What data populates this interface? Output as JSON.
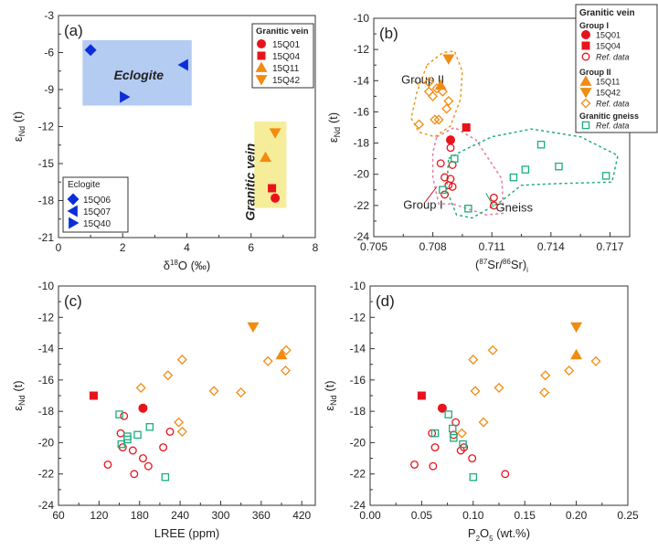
{
  "chart_data": [
    {
      "type": "scatter",
      "panel": "(a)",
      "xlabel": "δ18O (‰)",
      "ylabel": "εNd (t)",
      "xlim": [
        0,
        8
      ],
      "ylim": [
        -21,
        -3
      ],
      "xticks": [
        "0",
        "2",
        "4",
        "6",
        "8"
      ],
      "yticks": [
        "-3",
        "-6",
        "-9",
        "-12",
        "-15",
        "-18",
        "-21"
      ],
      "region_labels": [
        {
          "text": "Eclogite",
          "x": 2.5,
          "y": -8.2,
          "color": "#1f3fbf"
        },
        {
          "text": "Granitic vein",
          "x": 6.1,
          "y": -16.5,
          "color": "#d4141c",
          "rotate": true
        }
      ],
      "shaded": [
        {
          "x0": 0.75,
          "x1": 4.15,
          "y0": -10.3,
          "y1": -5.0,
          "color": "#b4cbf2"
        },
        {
          "x0": 6.1,
          "x1": 7.1,
          "y0": -11.6,
          "y1": -18.6,
          "color": "#f6ed9a"
        }
      ],
      "series": [
        {
          "name": "15Q06",
          "marker": "diamond",
          "color": "#0a2ed9",
          "points": [
            [
              1.0,
              -5.8
            ]
          ]
        },
        {
          "name": "15Q07",
          "marker": "tri-left",
          "color": "#0a2ed9",
          "points": [
            [
              3.9,
              -7.0
            ]
          ]
        },
        {
          "name": "15Q40",
          "marker": "tri-right",
          "color": "#0a2ed9",
          "points": [
            [
              2.05,
              -9.6
            ]
          ]
        },
        {
          "name": "15Q01",
          "marker": "circle",
          "color": "#e8131b",
          "points": [
            [
              6.75,
              -17.8
            ]
          ]
        },
        {
          "name": "15Q04",
          "marker": "square",
          "color": "#e8131b",
          "points": [
            [
              6.65,
              -17.0
            ]
          ]
        },
        {
          "name": "15Q11",
          "marker": "tri-up",
          "color": "#f28b12",
          "points": [
            [
              6.45,
              -14.5
            ]
          ]
        },
        {
          "name": "15Q42",
          "marker": "tri-down",
          "color": "#f28b12",
          "points": [
            [
              6.75,
              -12.5
            ]
          ]
        }
      ],
      "legend_left": {
        "title": "Eclogite",
        "items": [
          "15Q06",
          "15Q07",
          "15Q40"
        ]
      },
      "legend_right": {
        "title": "Granitic vein",
        "items": [
          "15Q01",
          "15Q04",
          "15Q11",
          "15Q42"
        ]
      }
    },
    {
      "type": "scatter",
      "panel": "(b)",
      "xlabel": "(87Sr/86Sr)i",
      "ylabel": "εNd (t)",
      "xlim": [
        0.705,
        0.718
      ],
      "ylim": [
        -24,
        -10
      ],
      "xticks": [
        "0.705",
        "0.708",
        "0.711",
        "0.714",
        "0.717"
      ],
      "yticks": [
        "-10",
        "-12",
        "-14",
        "-16",
        "-18",
        "-20",
        "-22",
        "-24"
      ],
      "group_labels": [
        {
          "text": "Group II",
          "x": 0.7064,
          "y": -14.2,
          "color": "#e89a1c"
        },
        {
          "text": "Group I",
          "x": 0.7065,
          "y": -22.2,
          "color": "#d4141c"
        },
        {
          "text": "Gneiss",
          "x": 0.7112,
          "y": -22.4,
          "color": "#16a06a"
        }
      ],
      "series": [
        {
          "name": "15Q01",
          "marker": "circle",
          "color": "#e8131b",
          "points": [
            [
              0.7089,
              -17.8
            ]
          ]
        },
        {
          "name": "15Q04",
          "marker": "square",
          "color": "#e8131b",
          "points": [
            [
              0.7097,
              -17.0
            ]
          ]
        },
        {
          "name": "15Q11",
          "marker": "tri-up",
          "color": "#f28b12",
          "points": [
            [
              0.7084,
              -14.3
            ]
          ]
        },
        {
          "name": "15Q42",
          "marker": "tri-down",
          "color": "#f28b12",
          "points": [
            [
              0.7088,
              -12.6
            ]
          ]
        },
        {
          "name": "Group I Ref. data",
          "marker": "open-circle",
          "color": "#e8131b",
          "points": [
            [
              0.7084,
              -19.3
            ],
            [
              0.7089,
              -18.3
            ],
            [
              0.709,
              -19.4
            ],
            [
              0.7086,
              -20.2
            ],
            [
              0.7089,
              -20.3
            ],
            [
              0.7086,
              -21.3
            ],
            [
              0.7088,
              -20.7
            ],
            [
              0.709,
              -20.8
            ],
            [
              0.7111,
              -21.5
            ],
            [
              0.7111,
              -22.0
            ]
          ]
        },
        {
          "name": "Group II Ref. data",
          "marker": "open-diamond",
          "color": "#f28b12",
          "points": [
            [
              0.7078,
              -14.1
            ],
            [
              0.7082,
              -14.5
            ],
            [
              0.7078,
              -14.7
            ],
            [
              0.7085,
              -14.7
            ],
            [
              0.708,
              -15.0
            ],
            [
              0.7088,
              -15.3
            ],
            [
              0.7087,
              -15.8
            ],
            [
              0.7083,
              -16.5
            ],
            [
              0.7081,
              -16.5
            ],
            [
              0.7073,
              -16.8
            ]
          ]
        },
        {
          "name": "Granitic gneiss Ref. data",
          "marker": "open-square",
          "color": "#1bae7e",
          "points": [
            [
              0.7091,
              -19.0
            ],
            [
              0.7098,
              -22.2
            ],
            [
              0.7121,
              -20.2
            ],
            [
              0.7135,
              -18.1
            ],
            [
              0.7127,
              -19.7
            ],
            [
              0.7144,
              -19.5
            ],
            [
              0.7168,
              -20.1
            ],
            [
              0.7085,
              -21.0
            ]
          ]
        }
      ],
      "legend": {
        "title": "Granitic vein",
        "group1": "Group I",
        "group2": "Group II",
        "group3": "Granitic gneiss",
        "items": [
          "15Q01",
          "15Q04",
          "Ref. data",
          "15Q11",
          "15Q42",
          "Ref. data",
          "Ref. data"
        ]
      }
    },
    {
      "type": "scatter",
      "panel": "(c)",
      "xlabel": "LREE (ppm)",
      "ylabel": "εNd (t)",
      "xlim": [
        60,
        440
      ],
      "ylim": [
        -24,
        -10
      ],
      "xticks": [
        "60",
        "120",
        "180",
        "240",
        "300",
        "360",
        "420"
      ],
      "yticks": [
        "-10",
        "-12",
        "-14",
        "-16",
        "-18",
        "-20",
        "-22",
        "-24"
      ],
      "series": [
        {
          "name": "15Q01",
          "marker": "circle",
          "color": "#e8131b",
          "points": [
            [
              185,
              -17.8
            ]
          ]
        },
        {
          "name": "15Q04",
          "marker": "square",
          "color": "#e8131b",
          "points": [
            [
              112,
              -17.0
            ]
          ]
        },
        {
          "name": "15Q11",
          "marker": "tri-up",
          "color": "#f28b12",
          "points": [
            [
              390,
              -14.4
            ]
          ]
        },
        {
          "name": "15Q42",
          "marker": "tri-down",
          "color": "#f28b12",
          "points": [
            [
              348,
              -12.6
            ]
          ]
        },
        {
          "name": "Group I Ref. data",
          "marker": "open-circle",
          "color": "#e8131b",
          "points": [
            [
              133,
              -21.4
            ],
            [
              157,
              -18.3
            ],
            [
              152,
              -19.4
            ],
            [
              155,
              -20.3
            ],
            [
              170,
              -20.5
            ],
            [
              172,
              -22.0
            ],
            [
              185,
              -21.0
            ],
            [
              193,
              -21.5
            ],
            [
              215,
              -20.3
            ],
            [
              225,
              -19.3
            ]
          ]
        },
        {
          "name": "Group II Ref. data",
          "marker": "open-diamond",
          "color": "#f28b12",
          "points": [
            [
              182,
              -16.5
            ],
            [
              222,
              -15.7
            ],
            [
              243,
              -14.7
            ],
            [
              238,
              -18.7
            ],
            [
              243,
              -19.3
            ],
            [
              290,
              -16.7
            ],
            [
              330,
              -16.8
            ],
            [
              370,
              -14.8
            ],
            [
              397,
              -14.1
            ],
            [
              396,
              -15.4
            ]
          ]
        },
        {
          "name": "Granitic gneiss Ref. data",
          "marker": "open-square",
          "color": "#1bae7e",
          "points": [
            [
              150,
              -18.2
            ],
            [
              153,
              -20.1
            ],
            [
              162,
              -19.8
            ],
            [
              177,
              -19.5
            ],
            [
              195,
              -19.0
            ],
            [
              218,
              -22.2
            ],
            [
              162,
              -19.6
            ]
          ]
        }
      ]
    },
    {
      "type": "scatter",
      "panel": "(d)",
      "xlabel": "P2O5 (wt.%)",
      "ylabel": "εNd (t)",
      "xlim": [
        0.0,
        0.25
      ],
      "ylim": [
        -24,
        -10
      ],
      "xticks": [
        "0.00",
        "0.05",
        "0.10",
        "0.15",
        "0.20",
        "0.25"
      ],
      "yticks": [
        "-10",
        "-12",
        "-14",
        "-16",
        "-18",
        "-20",
        "-22",
        "-24"
      ],
      "series": [
        {
          "name": "15Q01",
          "marker": "circle",
          "color": "#e8131b",
          "points": [
            [
              0.07,
              -17.8
            ]
          ]
        },
        {
          "name": "15Q04",
          "marker": "square",
          "color": "#e8131b",
          "points": [
            [
              0.05,
              -17.0
            ]
          ]
        },
        {
          "name": "15Q11",
          "marker": "tri-up",
          "color": "#f28b12",
          "points": [
            [
              0.2,
              -14.4
            ]
          ]
        },
        {
          "name": "15Q42",
          "marker": "tri-down",
          "color": "#f28b12",
          "points": [
            [
              0.2,
              -12.6
            ]
          ]
        },
        {
          "name": "Group I Ref. data",
          "marker": "open-circle",
          "color": "#e8131b",
          "points": [
            [
              0.043,
              -21.4
            ],
            [
              0.06,
              -19.4
            ],
            [
              0.063,
              -20.3
            ],
            [
              0.061,
              -21.5
            ],
            [
              0.081,
              -19.5
            ],
            [
              0.083,
              -18.7
            ],
            [
              0.088,
              -20.5
            ],
            [
              0.091,
              -20.3
            ],
            [
              0.099,
              -21.0
            ],
            [
              0.131,
              -22.0
            ]
          ]
        },
        {
          "name": "Group II Ref. data",
          "marker": "open-diamond",
          "color": "#f28b12",
          "points": [
            [
              0.089,
              -19.4
            ],
            [
              0.1,
              -14.7
            ],
            [
              0.102,
              -16.7
            ],
            [
              0.11,
              -18.7
            ],
            [
              0.119,
              -14.1
            ],
            [
              0.125,
              -16.5
            ],
            [
              0.17,
              -15.7
            ],
            [
              0.169,
              -16.8
            ],
            [
              0.193,
              -15.4
            ],
            [
              0.219,
              -14.8
            ]
          ]
        },
        {
          "name": "Granitic gneiss Ref. data",
          "marker": "open-square",
          "color": "#1bae7e",
          "points": [
            [
              0.063,
              -19.4
            ],
            [
              0.076,
              -18.2
            ],
            [
              0.08,
              -19.1
            ],
            [
              0.081,
              -19.7
            ],
            [
              0.09,
              -20.1
            ],
            [
              0.1,
              -22.2
            ]
          ]
        }
      ]
    }
  ]
}
